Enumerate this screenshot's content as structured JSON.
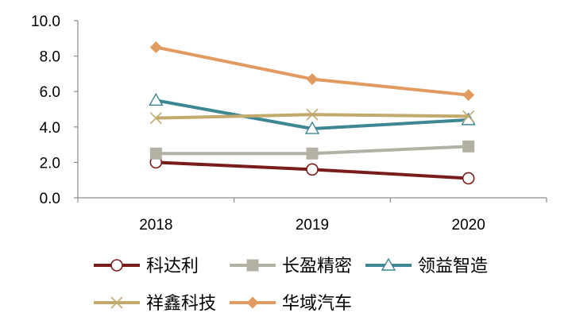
{
  "chart_data": {
    "type": "line",
    "title": "",
    "xlabel": "",
    "ylabel": "",
    "categories": [
      "2018",
      "2019",
      "2020"
    ],
    "ylim": [
      0,
      10
    ],
    "yticks": [
      "0.0",
      "2.0",
      "4.0",
      "6.0",
      "8.0",
      "10.0"
    ],
    "grid": false,
    "legend_position": "bottom",
    "series": [
      {
        "name": "科达利",
        "values": [
          2.0,
          1.6,
          1.1
        ],
        "color": "#7b1c1c",
        "marker": "circle"
      },
      {
        "name": "长盈精密",
        "values": [
          2.5,
          2.5,
          2.9
        ],
        "color": "#b3b0a4",
        "marker": "square"
      },
      {
        "name": "领益智造",
        "values": [
          5.5,
          3.9,
          4.4
        ],
        "color": "#3d8794",
        "marker": "triangle"
      },
      {
        "name": "祥鑫科技",
        "values": [
          4.5,
          4.7,
          4.6
        ],
        "color": "#c2aa6d",
        "marker": "x"
      },
      {
        "name": "华域汽车",
        "values": [
          8.5,
          6.7,
          5.8
        ],
        "color": "#e19b61",
        "marker": "diamond"
      }
    ]
  }
}
